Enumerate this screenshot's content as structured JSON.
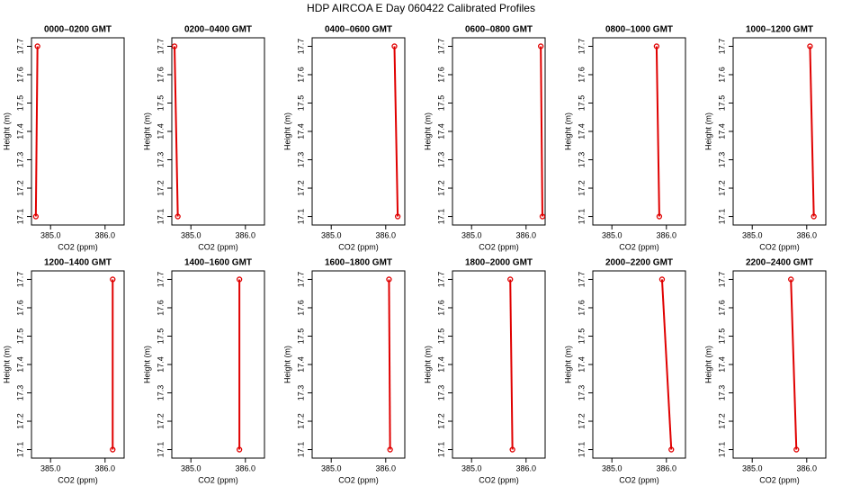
{
  "title": "HDP  AIRCOA E  Day 060422  Calibrated Profiles",
  "chart_data": [
    {
      "type": "line",
      "title": "0000–0200 GMT",
      "xlabel": "CO2 (ppm)",
      "ylabel": "Height (m)",
      "x": [
        384.73,
        384.76
      ],
      "values": [
        17.1,
        17.7
      ],
      "color": "#e00000",
      "xlim": [
        384.65,
        386.35
      ],
      "ylim": [
        17.07,
        17.73
      ],
      "xticks": [
        {
          "value": 385,
          "label": "385.0"
        },
        {
          "value": 386,
          "label": "386.0"
        }
      ],
      "yticks": [
        17.1,
        17.2,
        17.3,
        17.4,
        17.5,
        17.6,
        17.7
      ]
    },
    {
      "type": "line",
      "title": "0200–0400 GMT",
      "xlabel": "CO2 (ppm)",
      "ylabel": "Height (m)",
      "x": [
        384.76,
        384.7
      ],
      "values": [
        17.1,
        17.7
      ],
      "color": "#e00000",
      "xlim": [
        384.65,
        386.35
      ],
      "ylim": [
        17.07,
        17.73
      ],
      "xticks": [
        {
          "value": 385,
          "label": "385.0"
        },
        {
          "value": 386,
          "label": "386.0"
        }
      ],
      "yticks": [
        17.1,
        17.2,
        17.3,
        17.4,
        17.5,
        17.6,
        17.7
      ]
    },
    {
      "type": "line",
      "title": "0400–0600 GMT",
      "xlabel": "CO2 (ppm)",
      "ylabel": "Height (m)",
      "x": [
        386.22,
        386.16
      ],
      "values": [
        17.1,
        17.7
      ],
      "color": "#e00000",
      "xlim": [
        384.65,
        386.35
      ],
      "ylim": [
        17.07,
        17.73
      ],
      "xticks": [
        {
          "value": 385,
          "label": "385.0"
        },
        {
          "value": 386,
          "label": "386.0"
        }
      ],
      "yticks": [
        17.1,
        17.2,
        17.3,
        17.4,
        17.5,
        17.6,
        17.7
      ]
    },
    {
      "type": "line",
      "title": "0600–0800 GMT",
      "xlabel": "CO2 (ppm)",
      "ylabel": "Height (m)",
      "x": [
        386.3,
        386.27
      ],
      "values": [
        17.1,
        17.7
      ],
      "color": "#e00000",
      "xlim": [
        384.65,
        386.35
      ],
      "ylim": [
        17.07,
        17.73
      ],
      "xticks": [
        {
          "value": 385,
          "label": "385.0"
        },
        {
          "value": 386,
          "label": "386.0"
        }
      ],
      "yticks": [
        17.1,
        17.2,
        17.3,
        17.4,
        17.5,
        17.6,
        17.7
      ]
    },
    {
      "type": "line",
      "title": "0800–1000 GMT",
      "xlabel": "CO2 (ppm)",
      "ylabel": "Height (m)",
      "x": [
        385.87,
        385.82
      ],
      "values": [
        17.1,
        17.7
      ],
      "color": "#e00000",
      "xlim": [
        384.65,
        386.35
      ],
      "ylim": [
        17.07,
        17.73
      ],
      "xticks": [
        {
          "value": 385,
          "label": "385.0"
        },
        {
          "value": 386,
          "label": "386.0"
        }
      ],
      "yticks": [
        17.1,
        17.2,
        17.3,
        17.4,
        17.5,
        17.6,
        17.7
      ]
    },
    {
      "type": "line",
      "title": "1000–1200 GMT",
      "xlabel": "CO2 (ppm)",
      "ylabel": "Height (m)",
      "x": [
        386.13,
        386.06
      ],
      "values": [
        17.1,
        17.7
      ],
      "color": "#e00000",
      "xlim": [
        384.65,
        386.35
      ],
      "ylim": [
        17.07,
        17.73
      ],
      "xticks": [
        {
          "value": 385,
          "label": "385.0"
        },
        {
          "value": 386,
          "label": "386.0"
        }
      ],
      "yticks": [
        17.1,
        17.2,
        17.3,
        17.4,
        17.5,
        17.6,
        17.7
      ]
    },
    {
      "type": "line",
      "title": "1200–1400 GMT",
      "xlabel": "CO2 (ppm)",
      "ylabel": "Height (m)",
      "x": [
        386.14,
        386.14
      ],
      "values": [
        17.1,
        17.7
      ],
      "color": "#e00000",
      "xlim": [
        384.65,
        386.35
      ],
      "ylim": [
        17.07,
        17.73
      ],
      "xticks": [
        {
          "value": 385,
          "label": "385.0"
        },
        {
          "value": 386,
          "label": "386.0"
        }
      ],
      "yticks": [
        17.1,
        17.2,
        17.3,
        17.4,
        17.5,
        17.6,
        17.7
      ]
    },
    {
      "type": "line",
      "title": "1400–1600 GMT",
      "xlabel": "CO2 (ppm)",
      "ylabel": "Height (m)",
      "x": [
        385.89,
        385.89
      ],
      "values": [
        17.1,
        17.7
      ],
      "color": "#e00000",
      "xlim": [
        384.65,
        386.35
      ],
      "ylim": [
        17.07,
        17.73
      ],
      "xticks": [
        {
          "value": 385,
          "label": "385.0"
        },
        {
          "value": 386,
          "label": "386.0"
        }
      ],
      "yticks": [
        17.1,
        17.2,
        17.3,
        17.4,
        17.5,
        17.6,
        17.7
      ]
    },
    {
      "type": "line",
      "title": "1600–1800 GMT",
      "xlabel": "CO2 (ppm)",
      "ylabel": "Height (m)",
      "x": [
        386.08,
        386.06
      ],
      "values": [
        17.1,
        17.7
      ],
      "color": "#e00000",
      "xlim": [
        384.65,
        386.35
      ],
      "ylim": [
        17.07,
        17.73
      ],
      "xticks": [
        {
          "value": 385,
          "label": "385.0"
        },
        {
          "value": 386,
          "label": "386.0"
        }
      ],
      "yticks": [
        17.1,
        17.2,
        17.3,
        17.4,
        17.5,
        17.6,
        17.7
      ]
    },
    {
      "type": "line",
      "title": "1800–2000 GMT",
      "xlabel": "CO2 (ppm)",
      "ylabel": "Height (m)",
      "x": [
        385.75,
        385.71
      ],
      "values": [
        17.1,
        17.7
      ],
      "color": "#e00000",
      "xlim": [
        384.65,
        386.35
      ],
      "ylim": [
        17.07,
        17.73
      ],
      "xticks": [
        {
          "value": 385,
          "label": "385.0"
        },
        {
          "value": 386,
          "label": "386.0"
        }
      ],
      "yticks": [
        17.1,
        17.2,
        17.3,
        17.4,
        17.5,
        17.6,
        17.7
      ]
    },
    {
      "type": "line",
      "title": "2000–2200 GMT",
      "xlabel": "CO2 (ppm)",
      "ylabel": "Height (m)",
      "x": [
        386.09,
        385.92
      ],
      "values": [
        17.1,
        17.7
      ],
      "color": "#e00000",
      "xlim": [
        384.65,
        386.35
      ],
      "ylim": [
        17.07,
        17.73
      ],
      "xticks": [
        {
          "value": 385,
          "label": "385.0"
        },
        {
          "value": 386,
          "label": "386.0"
        }
      ],
      "yticks": [
        17.1,
        17.2,
        17.3,
        17.4,
        17.5,
        17.6,
        17.7
      ]
    },
    {
      "type": "line",
      "title": "2200–2400 GMT",
      "xlabel": "CO2 (ppm)",
      "ylabel": "Height (m)",
      "x": [
        385.81,
        385.71
      ],
      "values": [
        17.1,
        17.7
      ],
      "color": "#e00000",
      "xlim": [
        384.65,
        386.35
      ],
      "ylim": [
        17.07,
        17.73
      ],
      "xticks": [
        {
          "value": 385,
          "label": "385.0"
        },
        {
          "value": 386,
          "label": "386.0"
        }
      ],
      "yticks": [
        17.1,
        17.2,
        17.3,
        17.4,
        17.5,
        17.6,
        17.7
      ]
    }
  ]
}
